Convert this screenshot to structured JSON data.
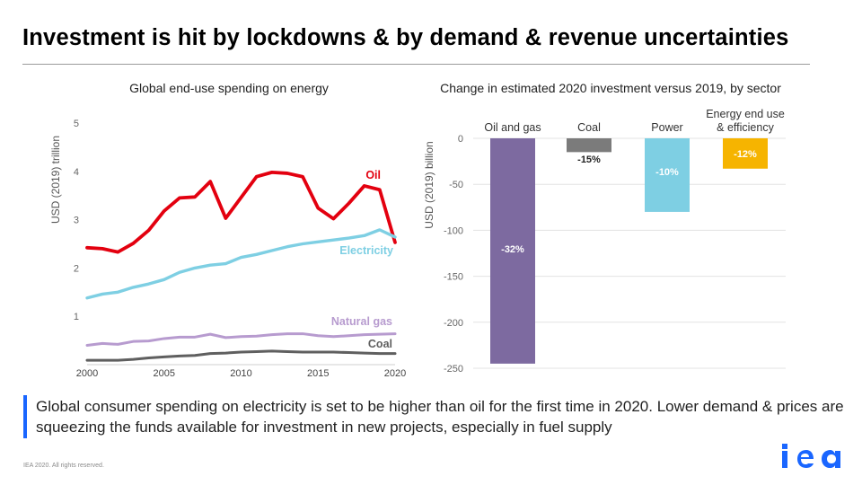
{
  "page": {
    "title": "Investment is hit by lockdowns & by demand & revenue uncertainties",
    "callout": "Global consumer spending on electricity is set to be higher than oil for the first time in 2020. Lower demand & prices are squeezing the funds available for investment in new projects, especially in fuel supply",
    "footer": "IEA 2020. All rights reserved.",
    "logo": "iea"
  },
  "colors": {
    "oil": "#e3000f",
    "electricity": "#7ecfe3",
    "natural_gas": "#b79bcf",
    "coal": "#5f5f5f",
    "oil_gas_bar": "#7d6aa0",
    "coal_bar": "#7b7b7b",
    "power_bar": "#7ecfe3",
    "efficiency_bar": "#f6b400",
    "brand": "#1a66ff"
  },
  "chart_data": [
    {
      "type": "line",
      "title": "Global end-use spending on energy",
      "ylabel": "USD (2019) trillion",
      "xlabel": "",
      "xlim": [
        2000,
        2020
      ],
      "ylim": [
        0,
        5
      ],
      "x_ticks": [
        "2000",
        "2005",
        "2010",
        "2015",
        "2020"
      ],
      "y_ticks": [
        "1",
        "2",
        "3",
        "4",
        "5"
      ],
      "grid": false,
      "x": [
        2000,
        2001,
        2002,
        2003,
        2004,
        2005,
        2006,
        2007,
        2008,
        2009,
        2010,
        2011,
        2012,
        2013,
        2014,
        2015,
        2016,
        2017,
        2018,
        2019,
        2020
      ],
      "series": [
        {
          "name": "Oil",
          "color_key": "oil",
          "values": [
            2.42,
            2.4,
            2.33,
            2.51,
            2.78,
            3.18,
            3.45,
            3.47,
            3.79,
            3.03,
            3.46,
            3.89,
            3.98,
            3.96,
            3.89,
            3.24,
            3.02,
            3.34,
            3.7,
            3.62,
            2.53
          ]
        },
        {
          "name": "Electricity",
          "color_key": "electricity",
          "values": [
            1.38,
            1.46,
            1.5,
            1.6,
            1.67,
            1.76,
            1.91,
            2.0,
            2.06,
            2.09,
            2.22,
            2.28,
            2.36,
            2.44,
            2.5,
            2.54,
            2.58,
            2.62,
            2.67,
            2.79,
            2.64
          ]
        },
        {
          "name": "Natural gas",
          "color_key": "natural_gas",
          "values": [
            0.4,
            0.44,
            0.42,
            0.48,
            0.49,
            0.54,
            0.57,
            0.57,
            0.63,
            0.56,
            0.58,
            0.59,
            0.62,
            0.64,
            0.64,
            0.6,
            0.58,
            0.6,
            0.62,
            0.63,
            0.64
          ]
        },
        {
          "name": "Coal",
          "color_key": "coal",
          "values": [
            0.09,
            0.09,
            0.09,
            0.11,
            0.14,
            0.16,
            0.18,
            0.19,
            0.23,
            0.24,
            0.26,
            0.27,
            0.28,
            0.27,
            0.26,
            0.26,
            0.26,
            0.25,
            0.24,
            0.23,
            0.23
          ]
        }
      ]
    },
    {
      "type": "bar",
      "title": "Change in estimated 2020 investment versus 2019, by sector",
      "ylabel": "USD (2019) billion",
      "xlabel": "",
      "ylim": [
        -250,
        0
      ],
      "y_ticks": [
        "0",
        "-50",
        "-100",
        "-150",
        "-200",
        "-250"
      ],
      "grid": true,
      "categories": [
        "Oil and gas",
        "Coal",
        "Power",
        "Energy end use & efficiency"
      ],
      "values": [
        -245,
        -15,
        -80,
        -33
      ],
      "data_labels": [
        "-32%",
        "-15%",
        "-10%",
        "-12%"
      ],
      "color_keys": [
        "oil_gas_bar",
        "coal_bar",
        "power_bar",
        "efficiency_bar"
      ]
    }
  ]
}
